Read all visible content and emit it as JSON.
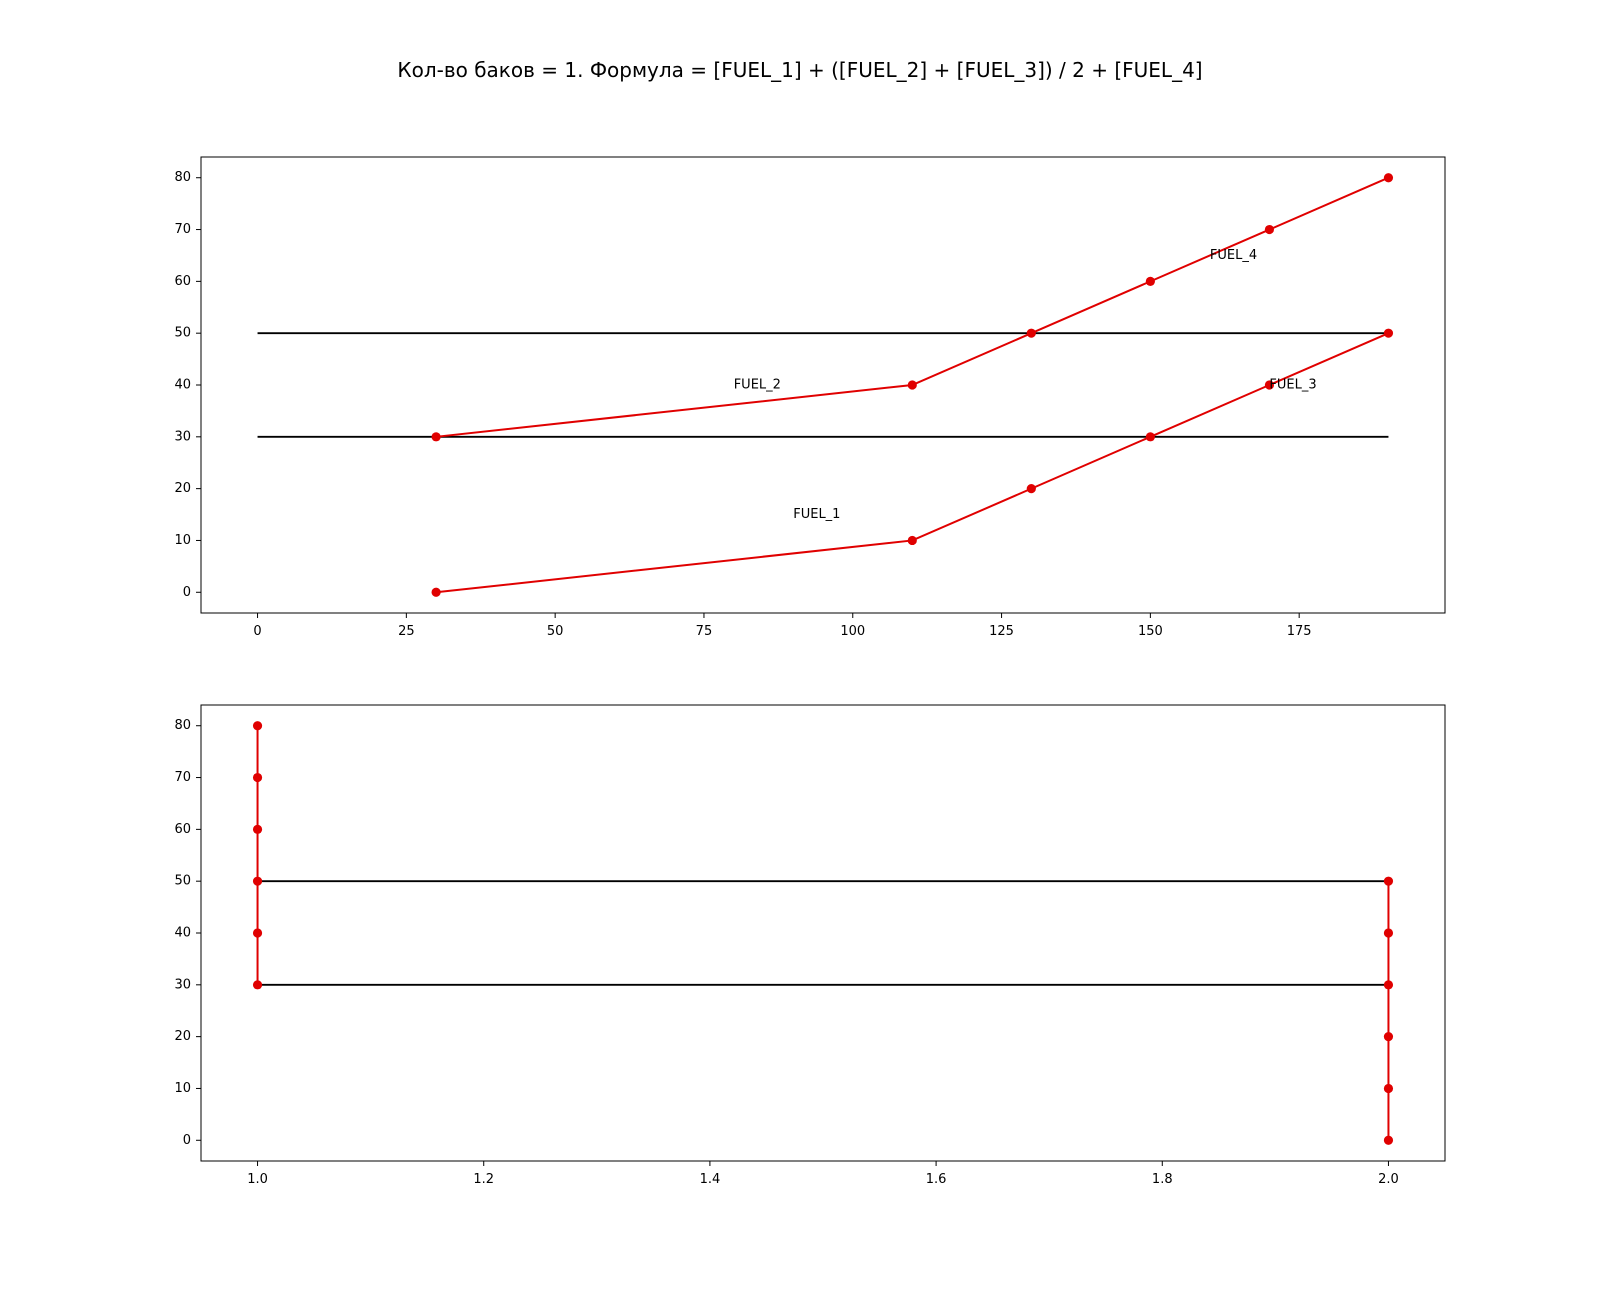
{
  "figure": {
    "title": "Кол-во баков = 1. Формула = [FUEL_1] + ([FUEL_2] + [FUEL_3]) / 2 + [FUEL_4]"
  },
  "colors": {
    "series": "#e00000",
    "reference": "#000000",
    "axes": "#000000"
  },
  "chart_data": [
    {
      "type": "line",
      "xlim": [
        -9.5,
        199.5
      ],
      "ylim": [
        -4,
        84
      ],
      "xticks": [
        0,
        25,
        50,
        75,
        100,
        125,
        150,
        175
      ],
      "xtick_labels": [
        "0",
        "25",
        "50",
        "75",
        "100",
        "125",
        "150",
        "175"
      ],
      "yticks": [
        0,
        10,
        20,
        30,
        40,
        50,
        60,
        70,
        80
      ],
      "ytick_labels": [
        "0",
        "10",
        "20",
        "30",
        "40",
        "50",
        "60",
        "70",
        "80"
      ],
      "grid": false,
      "series": [
        {
          "x": [
            30,
            110,
            130,
            150,
            170,
            190
          ],
          "y": [
            0,
            10,
            20,
            30,
            40,
            50
          ],
          "color": "#e00000",
          "marker": "o"
        },
        {
          "x": [
            30,
            110,
            130,
            150,
            170,
            190
          ],
          "y": [
            30,
            40,
            50,
            60,
            70,
            80
          ],
          "color": "#e00000",
          "marker": "o"
        }
      ],
      "reference_lines": [
        {
          "x": [
            0,
            190
          ],
          "y": [
            30,
            30
          ],
          "color": "#000000"
        },
        {
          "x": [
            0,
            190
          ],
          "y": [
            50,
            50
          ],
          "color": "#000000"
        }
      ],
      "annotations": [
        {
          "text": "FUEL_1",
          "x": 90,
          "y": 15
        },
        {
          "text": "FUEL_2",
          "x": 80,
          "y": 40
        },
        {
          "text": "FUEL_3",
          "x": 170,
          "y": 40
        },
        {
          "text": "FUEL_4",
          "x": 160,
          "y": 65
        }
      ]
    },
    {
      "type": "line",
      "xlim": [
        0.95,
        2.05
      ],
      "ylim": [
        -4,
        84
      ],
      "xticks": [
        1.0,
        1.2,
        1.4,
        1.6,
        1.8,
        2.0
      ],
      "xtick_labels": [
        "1.0",
        "1.2",
        "1.4",
        "1.6",
        "1.8",
        "2.0"
      ],
      "yticks": [
        0,
        10,
        20,
        30,
        40,
        50,
        60,
        70,
        80
      ],
      "ytick_labels": [
        "0",
        "10",
        "20",
        "30",
        "40",
        "50",
        "60",
        "70",
        "80"
      ],
      "grid": false,
      "series": [
        {
          "x": [
            1,
            1,
            1,
            1,
            1,
            1
          ],
          "y": [
            30,
            40,
            50,
            60,
            70,
            80
          ],
          "color": "#e00000",
          "marker": "o"
        },
        {
          "x": [
            2,
            2,
            2,
            2,
            2,
            2
          ],
          "y": [
            0,
            10,
            20,
            30,
            40,
            50
          ],
          "color": "#e00000",
          "marker": "o"
        }
      ],
      "reference_lines": [
        {
          "x": [
            1,
            2
          ],
          "y": [
            30,
            30
          ],
          "color": "#000000"
        },
        {
          "x": [
            1,
            2
          ],
          "y": [
            50,
            50
          ],
          "color": "#000000"
        }
      ],
      "annotations": []
    }
  ]
}
